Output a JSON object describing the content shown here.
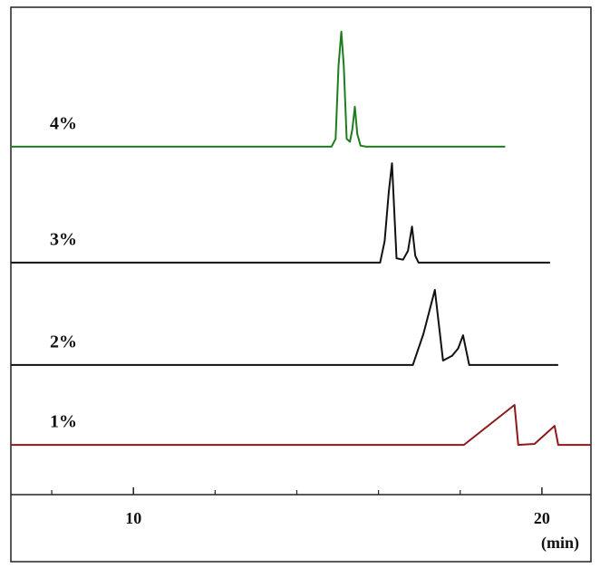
{
  "chart_data": {
    "type": "line",
    "x_label": "(min)",
    "xlim": [
      7.0,
      21.2
    ],
    "ylim": [
      0,
      100
    ],
    "xticks": [
      10,
      20
    ],
    "xminorticks": [
      8,
      12,
      14,
      16,
      18
    ],
    "series": [
      {
        "name": "4%",
        "color": "#1e7d1e",
        "x": [
          7.0,
          14.85,
          14.95,
          15.02,
          15.09,
          15.15,
          15.22,
          15.3,
          15.36,
          15.42,
          15.48,
          15.56,
          15.7,
          19.1
        ],
        "values": [
          71.4,
          71.4,
          73,
          88,
          95.0,
          88,
          73,
          72.4,
          75,
          79.6,
          74,
          71.6,
          71.4,
          71.4
        ]
      },
      {
        "name": "3%",
        "color": "#111111",
        "x": [
          7.0,
          16.04,
          16.15,
          16.25,
          16.33,
          16.44,
          16.6,
          16.72,
          16.82,
          16.9,
          16.98,
          20.2
        ],
        "values": [
          47.6,
          47.6,
          52,
          62,
          68.0,
          48.5,
          48.2,
          50,
          55.0,
          49,
          47.6,
          47.6
        ]
      },
      {
        "name": "2%",
        "color": "#111111",
        "x": [
          7.0,
          16.84,
          17.1,
          17.38,
          17.58,
          17.8,
          17.95,
          18.07,
          18.22,
          20.4
        ],
        "values": [
          26.6,
          26.6,
          33,
          42.0,
          27.5,
          28.5,
          30,
          32.7,
          26.6,
          26.6
        ]
      },
      {
        "name": "1%",
        "color": "#8b1a1a",
        "x": [
          7.0,
          18.09,
          19.33,
          19.42,
          19.82,
          20.31,
          20.4,
          21.2
        ],
        "values": [
          10.2,
          10.2,
          18.4,
          10.2,
          10.4,
          14.1,
          10.2,
          10.2
        ]
      }
    ]
  }
}
